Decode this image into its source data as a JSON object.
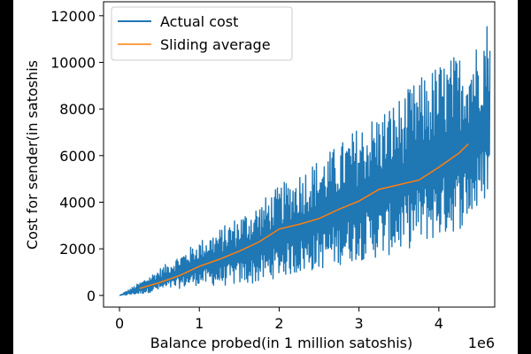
{
  "chart_data": {
    "type": "line",
    "title": "",
    "xlabel": "Balance probed(in 1 million satoshis)",
    "ylabel": "Cost for sender(in satoshis",
    "x_offset_text": "1e6",
    "xlim": [
      -200000,
      4700000
    ],
    "ylim": [
      -500,
      12600
    ],
    "x_ticks": [
      0,
      1000000,
      2000000,
      3000000,
      4000000
    ],
    "x_tick_labels": [
      "0",
      "1",
      "2",
      "3",
      "4"
    ],
    "y_ticks": [
      0,
      2000,
      4000,
      6000,
      8000,
      10000,
      12000
    ],
    "y_tick_labels": [
      "0",
      "2000",
      "4000",
      "6000",
      "8000",
      "10000",
      "12000"
    ],
    "grid": false,
    "legend": {
      "position": "top-left"
    },
    "series": [
      {
        "name": "Actual cost",
        "color": "#1f77b4",
        "style": "dense-oscillating",
        "x": [
          0,
          250000,
          500000,
          750000,
          1000000,
          1250000,
          1500000,
          1750000,
          2000000,
          2250000,
          2500000,
          2750000,
          3000000,
          3250000,
          3500000,
          3750000,
          4000000,
          4250000,
          4500000,
          4640000
        ],
        "upper": [
          0,
          550,
          1150,
          1750,
          2350,
          2850,
          3450,
          4000,
          4700,
          5350,
          5900,
          6500,
          7300,
          7900,
          8500,
          9300,
          10000,
          10400,
          11000,
          12200
        ],
        "lower": [
          0,
          50,
          200,
          300,
          450,
          400,
          450,
          500,
          800,
          900,
          1100,
          1300,
          1500,
          1600,
          1800,
          2200,
          2400,
          2800,
          3500,
          4500
        ]
      },
      {
        "name": "Sliding average",
        "color": "#ff7f0e",
        "x": [
          250000,
          500000,
          750000,
          1000000,
          1250000,
          1500000,
          1750000,
          2000000,
          2250000,
          2500000,
          2750000,
          3000000,
          3250000,
          3500000,
          3750000,
          4000000,
          4250000,
          4370000
        ],
        "values": [
          300,
          550,
          850,
          1250,
          1550,
          1900,
          2300,
          2850,
          3050,
          3300,
          3700,
          4050,
          4550,
          4750,
          4950,
          5500,
          6100,
          6500
        ]
      }
    ]
  }
}
